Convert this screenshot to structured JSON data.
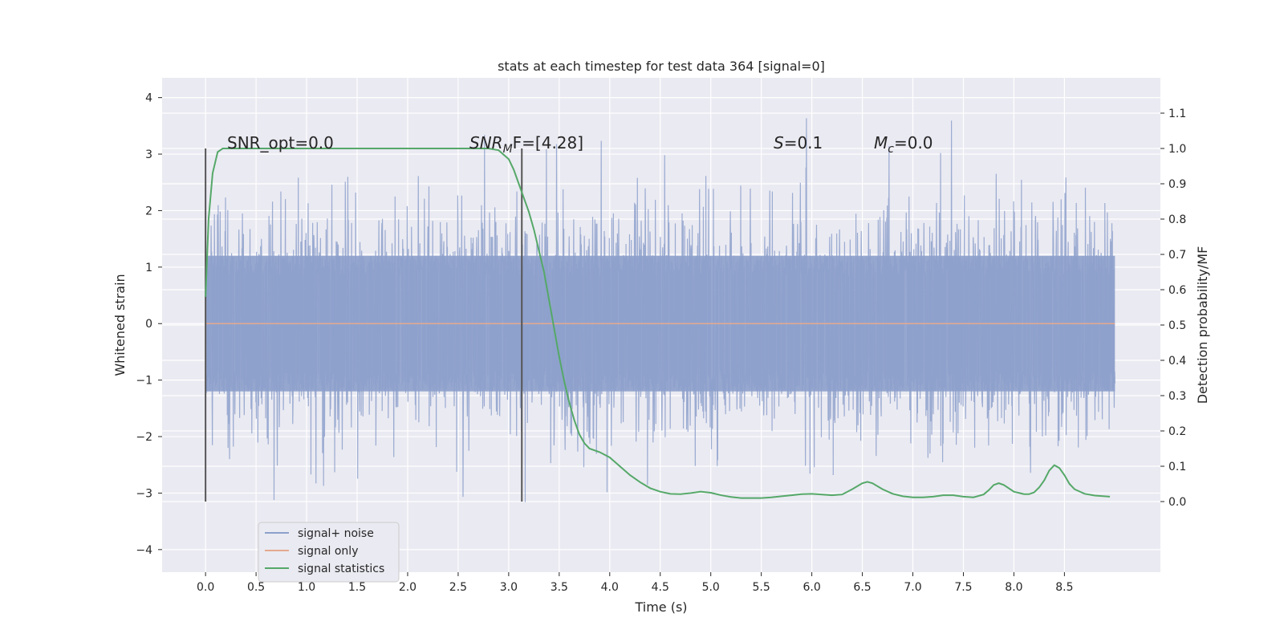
{
  "chart_data": {
    "type": "line",
    "title": "stats at each timestep for test data 364 [signal=0]",
    "xlabel": "Time (s)",
    "ylabel_left": "Whitened strain",
    "ylabel_right": "Detection probability/MF",
    "xlim": [
      -0.43,
      9.45
    ],
    "ylim_left": [
      -4.4,
      4.35
    ],
    "ylim_right": [
      -0.2,
      1.2
    ],
    "x_ticks": [
      "0.0",
      "0.5",
      "1.0",
      "1.5",
      "2.0",
      "2.5",
      "3.0",
      "3.5",
      "4.0",
      "4.5",
      "5.0",
      "5.5",
      "6.0",
      "6.5",
      "7.0",
      "7.5",
      "8.0",
      "8.5"
    ],
    "y_ticks_left": [
      "4",
      "3",
      "2",
      "1",
      "0",
      "−1",
      "−2",
      "−3",
      "−4"
    ],
    "y_ticks_right": [
      "1.1",
      "1.0",
      "0.9",
      "0.8",
      "0.7",
      "0.6",
      "0.5",
      "0.4",
      "0.3",
      "0.2",
      "0.1",
      "0.0"
    ],
    "grid": true,
    "legend_position": "lower-left",
    "annotations": {
      "snr_opt": "SNR_opt=0.0",
      "snr_mf_sym": "SNR",
      "snr_mf_sub": "M",
      "snr_mf_tail": "F=[4.28]",
      "s_sym": "S",
      "s_val": "=0.1",
      "mc_sym": "M",
      "mc_sub": "c",
      "mc_val": "=0.0"
    },
    "series": [
      {
        "name": "signal+ noise",
        "axis": "left",
        "color": "#8da0cb",
        "x_range": [
          0.0,
          9.0
        ],
        "amplitude_core": 1.2,
        "amplitude_peak": 4.0,
        "style": "dense-noise"
      },
      {
        "name": "signal only",
        "axis": "left",
        "color": "#e5a98f",
        "x": [
          0.0,
          9.0
        ],
        "y": [
          0.0,
          0.0
        ]
      },
      {
        "name": "signal statistics",
        "axis": "right",
        "color": "#55a868",
        "x": [
          0.0,
          0.03,
          0.07,
          0.12,
          0.17,
          0.25,
          0.5,
          1.0,
          1.5,
          2.0,
          2.5,
          2.8,
          2.9,
          3.0,
          3.05,
          3.1,
          3.15,
          3.2,
          3.25,
          3.3,
          3.35,
          3.4,
          3.45,
          3.5,
          3.55,
          3.6,
          3.65,
          3.7,
          3.75,
          3.8,
          3.9,
          4.0,
          4.1,
          4.2,
          4.3,
          4.4,
          4.5,
          4.6,
          4.7,
          4.8,
          4.9,
          5.0,
          5.1,
          5.2,
          5.3,
          5.4,
          5.5,
          5.6,
          5.7,
          5.8,
          5.9,
          6.0,
          6.1,
          6.2,
          6.3,
          6.4,
          6.5,
          6.55,
          6.6,
          6.7,
          6.8,
          6.9,
          7.0,
          7.1,
          7.2,
          7.3,
          7.4,
          7.5,
          7.6,
          7.7,
          7.75,
          7.8,
          7.85,
          7.9,
          8.0,
          8.1,
          8.15,
          8.2,
          8.25,
          8.3,
          8.35,
          8.4,
          8.45,
          8.5,
          8.55,
          8.6,
          8.7,
          8.8,
          8.95
        ],
        "y": [
          0.58,
          0.8,
          0.93,
          0.99,
          1.0,
          1.0,
          1.0,
          1.0,
          1.0,
          1.0,
          1.0,
          1.0,
          0.995,
          0.97,
          0.94,
          0.9,
          0.86,
          0.82,
          0.77,
          0.71,
          0.65,
          0.57,
          0.49,
          0.41,
          0.34,
          0.28,
          0.23,
          0.19,
          0.165,
          0.15,
          0.14,
          0.125,
          0.1,
          0.075,
          0.055,
          0.038,
          0.028,
          0.022,
          0.021,
          0.024,
          0.028,
          0.025,
          0.018,
          0.013,
          0.01,
          0.01,
          0.01,
          0.012,
          0.015,
          0.018,
          0.021,
          0.022,
          0.02,
          0.018,
          0.02,
          0.035,
          0.052,
          0.056,
          0.052,
          0.035,
          0.022,
          0.015,
          0.012,
          0.012,
          0.014,
          0.018,
          0.018,
          0.014,
          0.012,
          0.02,
          0.032,
          0.047,
          0.052,
          0.047,
          0.028,
          0.021,
          0.021,
          0.026,
          0.04,
          0.06,
          0.088,
          0.103,
          0.095,
          0.075,
          0.05,
          0.035,
          0.022,
          0.017,
          0.014
        ]
      }
    ],
    "vertical_markers": [
      {
        "x": 0.0,
        "y_low": -3.15,
        "y_high": 3.1,
        "color": "#555555"
      },
      {
        "x": 3.13,
        "y_low": -3.15,
        "y_high": 3.1,
        "color": "#555555"
      }
    ]
  }
}
